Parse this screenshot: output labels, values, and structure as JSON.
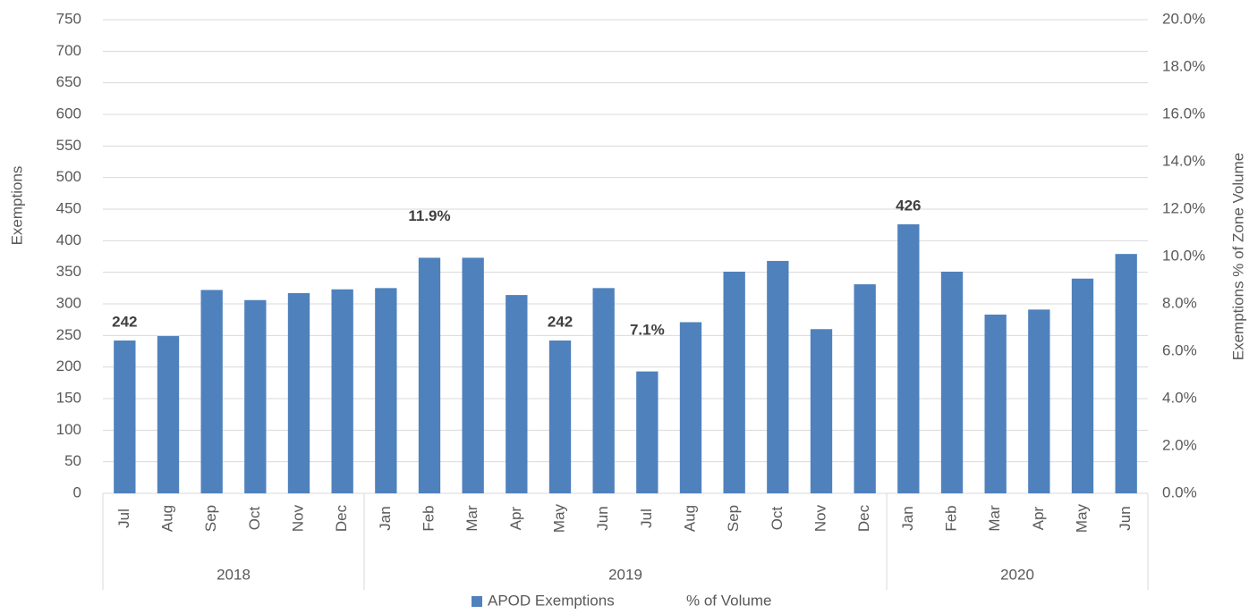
{
  "chart_data": {
    "type": "bar",
    "y_label": "Exemptions",
    "y2_label": "Exemptions % of Zone Volume",
    "categories": [
      "Jul",
      "Aug",
      "Sep",
      "Oct",
      "Nov",
      "Dec",
      "Jan",
      "Feb",
      "Mar",
      "Apr",
      "May",
      "Jun",
      "Jul",
      "Aug",
      "Sep",
      "Oct",
      "Nov",
      "Dec",
      "Jan",
      "Feb",
      "Mar",
      "Apr",
      "May",
      "Jun"
    ],
    "groups": [
      {
        "label": "2018",
        "size": 6
      },
      {
        "label": "2019",
        "size": 12
      },
      {
        "label": "2020",
        "size": 6
      }
    ],
    "series": [
      {
        "name": "APOD Exemptions",
        "color": "#4f81bd",
        "values": [
          242,
          249,
          322,
          306,
          317,
          323,
          325,
          373,
          373,
          314,
          242,
          325,
          193,
          271,
          351,
          368,
          260,
          331,
          426,
          351,
          283,
          291,
          340,
          379
        ],
        "value_labels": [
          "242",
          null,
          null,
          null,
          null,
          null,
          null,
          null,
          null,
          null,
          "242",
          null,
          null,
          null,
          null,
          null,
          null,
          null,
          "426",
          null,
          null,
          null,
          null,
          null
        ]
      },
      {
        "name": "% of Volume",
        "axis": "y2",
        "show_line": false,
        "values": [
          null,
          null,
          null,
          null,
          null,
          null,
          null,
          11.9,
          null,
          null,
          null,
          null,
          7.1,
          null,
          null,
          null,
          null,
          null,
          null,
          null,
          null,
          null,
          null,
          null
        ],
        "value_labels": [
          null,
          null,
          null,
          null,
          null,
          null,
          null,
          "11.9%",
          null,
          null,
          null,
          null,
          "7.1%",
          null,
          null,
          null,
          null,
          null,
          null,
          null,
          null,
          null,
          null,
          null
        ]
      }
    ],
    "ylim": [
      0,
      750
    ],
    "yticks": [
      0,
      50,
      100,
      150,
      200,
      250,
      300,
      350,
      400,
      450,
      500,
      550,
      600,
      650,
      700,
      750
    ],
    "y2lim": [
      0,
      20
    ],
    "y2ticks": [
      {
        "value": 0,
        "label": "0.0%"
      },
      {
        "value": 2,
        "label": "2.0%"
      },
      {
        "value": 4,
        "label": "4.0%"
      },
      {
        "value": 6,
        "label": "6.0%"
      },
      {
        "value": 8,
        "label": "8.0%"
      },
      {
        "value": 10,
        "label": "10.0%"
      },
      {
        "value": 12,
        "label": "12.0%"
      },
      {
        "value": 14,
        "label": "14.0%"
      },
      {
        "value": 16,
        "label": "16.0%"
      },
      {
        "value": 18,
        "label": "18.0%"
      },
      {
        "value": 20,
        "label": "20.0%"
      }
    ],
    "grid": true,
    "legend": "bottom"
  }
}
